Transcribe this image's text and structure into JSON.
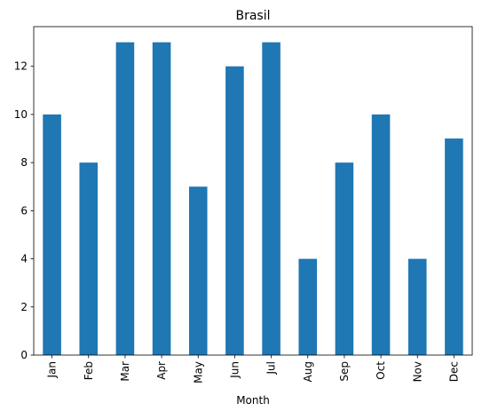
{
  "chart_data": {
    "type": "bar",
    "title": "Brasil",
    "xlabel": "Month",
    "ylabel": "",
    "categories": [
      "Jan",
      "Feb",
      "Mar",
      "Apr",
      "May",
      "Jun",
      "Jul",
      "Aug",
      "Sep",
      "Oct",
      "Nov",
      "Dec"
    ],
    "values": [
      10,
      8,
      13,
      13,
      7,
      12,
      13,
      4,
      8,
      10,
      4,
      9
    ],
    "ylim": [
      0,
      13.65
    ],
    "yticks": [
      0,
      2,
      4,
      6,
      8,
      10,
      12
    ],
    "grid": false,
    "legend": "none",
    "colors": {
      "bar": "#1f77b4",
      "axis": "#000000",
      "background": "#ffffff"
    }
  }
}
